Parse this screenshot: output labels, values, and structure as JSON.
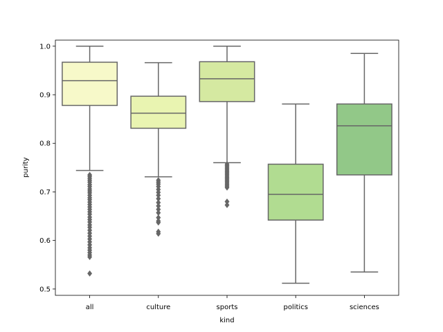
{
  "chart_data": {
    "type": "box",
    "title": "",
    "xlabel": "kind",
    "ylabel": "purity",
    "ylim": [
      0.487,
      1.0125
    ],
    "yticks": [
      "0.5",
      "0.6",
      "0.7",
      "0.8",
      "0.9",
      "1.0"
    ],
    "ytick_values": [
      0.5,
      0.6,
      0.7,
      0.8,
      0.9,
      1.0
    ],
    "categories": [
      "all",
      "culture",
      "sports",
      "politics",
      "sciences"
    ],
    "colors": {
      "all": "#f7f9c9",
      "culture": "#e9f4b1",
      "sports": "#d5e9a1",
      "politics": "#b1dc91",
      "sciences": "#92c888",
      "lines": "#666666"
    },
    "boxes": [
      {
        "category": "all",
        "whisker_low": 0.744,
        "q1": 0.878,
        "median": 0.929,
        "q3": 0.967,
        "whisker_high": 1.0,
        "outliers": [
          0.735,
          0.732,
          0.728,
          0.724,
          0.72,
          0.715,
          0.711,
          0.706,
          0.702,
          0.698,
          0.693,
          0.688,
          0.684,
          0.679,
          0.674,
          0.669,
          0.664,
          0.659,
          0.654,
          0.648,
          0.643,
          0.638,
          0.632,
          0.627,
          0.621,
          0.615,
          0.609,
          0.603,
          0.597,
          0.591,
          0.585,
          0.58,
          0.575,
          0.57,
          0.566,
          0.532
        ]
      },
      {
        "category": "culture",
        "whisker_low": 0.731,
        "q1": 0.831,
        "median": 0.862,
        "q3": 0.897,
        "whisker_high": 0.966,
        "outliers": [
          0.724,
          0.72,
          0.716,
          0.711,
          0.705,
          0.699,
          0.693,
          0.686,
          0.678,
          0.671,
          0.664,
          0.657,
          0.647,
          0.64,
          0.637,
          0.618,
          0.614
        ]
      },
      {
        "category": "sports",
        "whisker_low": 0.76,
        "q1": 0.886,
        "median": 0.933,
        "q3": 0.968,
        "whisker_high": 1.0,
        "outliers": [
          0.757,
          0.754,
          0.751,
          0.748,
          0.745,
          0.742,
          0.739,
          0.736,
          0.733,
          0.73,
          0.727,
          0.724,
          0.721,
          0.718,
          0.715,
          0.712,
          0.709,
          0.68,
          0.673
        ]
      },
      {
        "category": "politics",
        "whisker_low": 0.512,
        "q1": 0.642,
        "median": 0.695,
        "q3": 0.757,
        "whisker_high": 0.881,
        "outliers": []
      },
      {
        "category": "sciences",
        "whisker_low": 0.535,
        "q1": 0.735,
        "median": 0.836,
        "q3": 0.881,
        "whisker_high": 0.985,
        "outliers": []
      }
    ]
  }
}
